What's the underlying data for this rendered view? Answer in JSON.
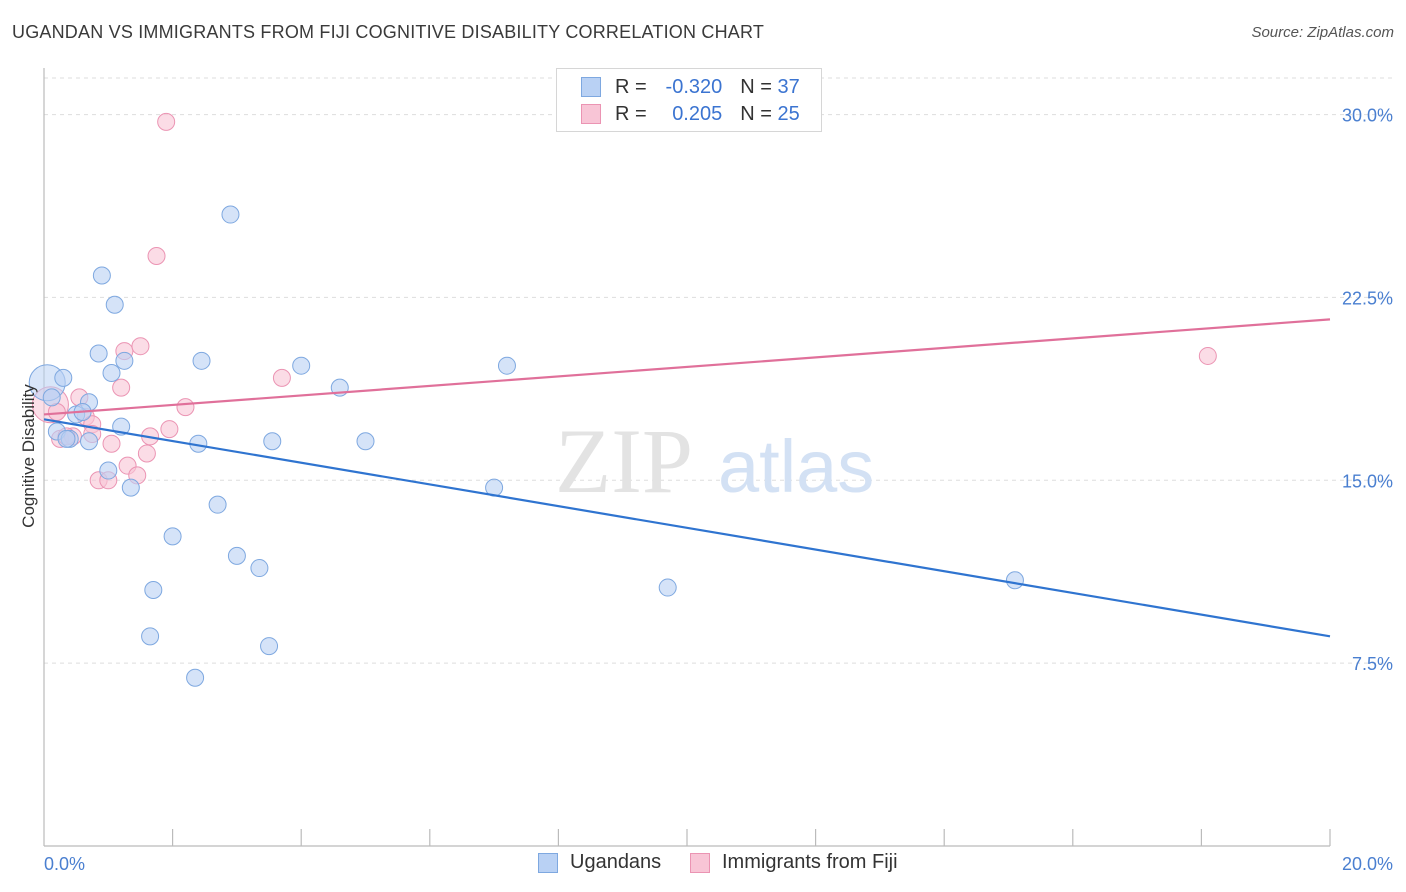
{
  "title": "UGANDAN VS IMMIGRANTS FROM FIJI COGNITIVE DISABILITY CORRELATION CHART",
  "source": "Source: ZipAtlas.com",
  "watermark": {
    "zip": "ZIP",
    "atlas": "atlas"
  },
  "legend": {
    "rows": [
      {
        "r_label": "R =",
        "r_value": "-0.320",
        "n_label": "N =",
        "n_value": "37"
      },
      {
        "r_label": "R =",
        "r_value": "0.205",
        "n_label": "N =",
        "n_value": "25"
      }
    ]
  },
  "bottom_legend": {
    "series1": "Ugandans",
    "series2": "Immigrants from Fiji"
  },
  "colors": {
    "blue_fill": "#b9d1f4",
    "blue_stroke": "#7ea8e0",
    "blue_line": "#2f74d0",
    "pink_fill": "#f8c5d6",
    "pink_stroke": "#eb94b3",
    "pink_line": "#e0709a",
    "tick_text": "#4a7fd0",
    "grid": "#dddddd"
  },
  "chart_data": {
    "type": "scatter",
    "xlabel": "",
    "ylabel": "Cognitive Disability",
    "xlim": [
      0,
      20
    ],
    "ylim": [
      0,
      31.5
    ],
    "x_tick_labels": [
      "0.0%",
      "20.0%"
    ],
    "y_ticks": [
      7.5,
      15.0,
      22.5,
      30.0
    ],
    "y_tick_labels": [
      "7.5%",
      "15.0%",
      "22.5%",
      "30.0%"
    ],
    "grid": true,
    "series": [
      {
        "name": "Ugandans",
        "r": -0.32,
        "n": 37,
        "trend": {
          "x": [
            0,
            20
          ],
          "y": [
            17.5,
            8.6
          ]
        },
        "points": [
          {
            "x": 0.05,
            "y": 19.0,
            "size": "large"
          },
          {
            "x": 0.12,
            "y": 18.4
          },
          {
            "x": 0.3,
            "y": 19.2
          },
          {
            "x": 0.5,
            "y": 17.7
          },
          {
            "x": 0.7,
            "y": 18.2
          },
          {
            "x": 0.2,
            "y": 17.0
          },
          {
            "x": 0.4,
            "y": 16.7
          },
          {
            "x": 0.7,
            "y": 16.6
          },
          {
            "x": 0.6,
            "y": 17.8
          },
          {
            "x": 0.9,
            "y": 23.4
          },
          {
            "x": 1.1,
            "y": 22.2
          },
          {
            "x": 0.85,
            "y": 20.2
          },
          {
            "x": 1.05,
            "y": 19.4
          },
          {
            "x": 1.25,
            "y": 19.9
          },
          {
            "x": 1.2,
            "y": 17.2
          },
          {
            "x": 1.0,
            "y": 15.4
          },
          {
            "x": 1.35,
            "y": 14.7
          },
          {
            "x": 2.9,
            "y": 25.9
          },
          {
            "x": 2.45,
            "y": 19.9
          },
          {
            "x": 2.4,
            "y": 16.5
          },
          {
            "x": 2.7,
            "y": 14.0
          },
          {
            "x": 2.0,
            "y": 12.7
          },
          {
            "x": 3.0,
            "y": 11.9
          },
          {
            "x": 3.35,
            "y": 11.4
          },
          {
            "x": 1.7,
            "y": 10.5
          },
          {
            "x": 1.65,
            "y": 8.6
          },
          {
            "x": 3.5,
            "y": 8.2
          },
          {
            "x": 2.35,
            "y": 6.9
          },
          {
            "x": 4.0,
            "y": 19.7
          },
          {
            "x": 3.55,
            "y": 16.6
          },
          {
            "x": 4.6,
            "y": 18.8
          },
          {
            "x": 5.0,
            "y": 16.6
          },
          {
            "x": 7.2,
            "y": 19.7
          },
          {
            "x": 7.0,
            "y": 14.7
          },
          {
            "x": 9.7,
            "y": 10.6
          },
          {
            "x": 15.1,
            "y": 10.9
          },
          {
            "x": 0.35,
            "y": 16.7
          }
        ]
      },
      {
        "name": "Immigrants from Fiji",
        "r": 0.205,
        "n": 25,
        "trend": {
          "x": [
            0,
            20
          ],
          "y": [
            17.7,
            21.6
          ]
        },
        "points": [
          {
            "x": 0.1,
            "y": 18.1,
            "size": "large"
          },
          {
            "x": 0.25,
            "y": 16.7
          },
          {
            "x": 0.45,
            "y": 16.8
          },
          {
            "x": 0.55,
            "y": 18.4
          },
          {
            "x": 0.65,
            "y": 17.6
          },
          {
            "x": 0.75,
            "y": 17.3
          },
          {
            "x": 0.75,
            "y": 16.9
          },
          {
            "x": 0.85,
            "y": 15.0
          },
          {
            "x": 1.0,
            "y": 15.0
          },
          {
            "x": 1.05,
            "y": 16.5
          },
          {
            "x": 1.2,
            "y": 18.8
          },
          {
            "x": 1.25,
            "y": 20.3
          },
          {
            "x": 1.3,
            "y": 15.6
          },
          {
            "x": 1.45,
            "y": 15.2
          },
          {
            "x": 1.5,
            "y": 20.5
          },
          {
            "x": 1.6,
            "y": 16.1
          },
          {
            "x": 1.65,
            "y": 16.8
          },
          {
            "x": 1.75,
            "y": 24.2
          },
          {
            "x": 1.9,
            "y": 29.7
          },
          {
            "x": 1.95,
            "y": 17.1
          },
          {
            "x": 2.2,
            "y": 18.0
          },
          {
            "x": 3.7,
            "y": 19.2
          },
          {
            "x": 18.1,
            "y": 20.1
          },
          {
            "x": 0.35,
            "y": 16.8
          },
          {
            "x": 0.2,
            "y": 17.8
          }
        ]
      }
    ]
  }
}
